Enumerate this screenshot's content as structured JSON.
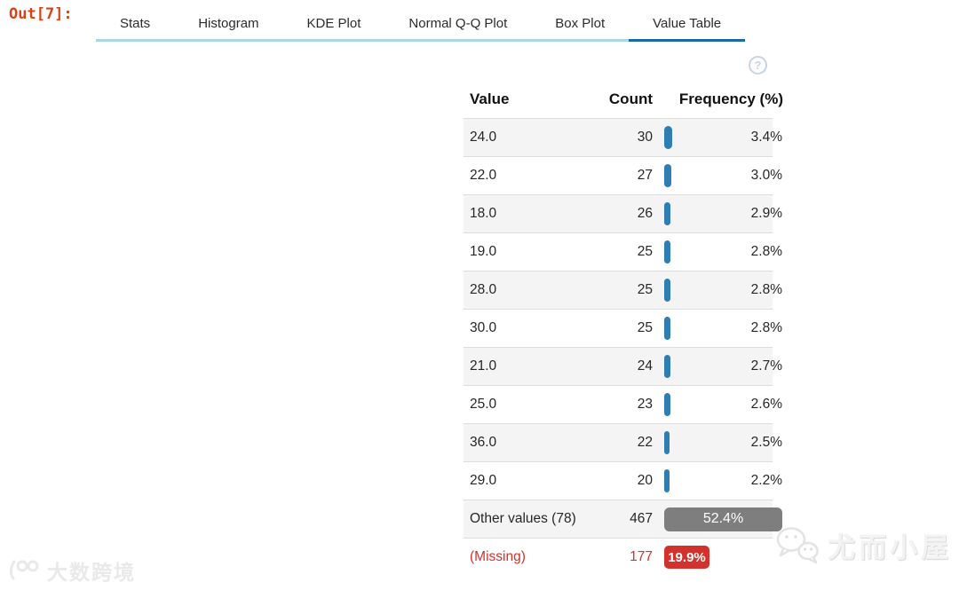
{
  "prompt": {
    "label": "Out[7]:"
  },
  "tabs": {
    "items": [
      {
        "label": "Stats",
        "active": false
      },
      {
        "label": "Histogram",
        "active": false
      },
      {
        "label": "KDE Plot",
        "active": false
      },
      {
        "label": "Normal Q-Q Plot",
        "active": false
      },
      {
        "label": "Box Plot",
        "active": false
      },
      {
        "label": "Value Table",
        "active": true
      }
    ]
  },
  "help": {
    "glyph": "?"
  },
  "table": {
    "columns": [
      "Value",
      "Count",
      "Frequency (%)"
    ],
    "rows": [
      {
        "value": "24.0",
        "count": "30",
        "pct": 3.4,
        "pct_label": "3.4%",
        "type": "normal"
      },
      {
        "value": "22.0",
        "count": "27",
        "pct": 3.0,
        "pct_label": "3.0%",
        "type": "normal"
      },
      {
        "value": "18.0",
        "count": "26",
        "pct": 2.9,
        "pct_label": "2.9%",
        "type": "normal"
      },
      {
        "value": "19.0",
        "count": "25",
        "pct": 2.8,
        "pct_label": "2.8%",
        "type": "normal"
      },
      {
        "value": "28.0",
        "count": "25",
        "pct": 2.8,
        "pct_label": "2.8%",
        "type": "normal"
      },
      {
        "value": "30.0",
        "count": "25",
        "pct": 2.8,
        "pct_label": "2.8%",
        "type": "normal"
      },
      {
        "value": "21.0",
        "count": "24",
        "pct": 2.7,
        "pct_label": "2.7%",
        "type": "normal"
      },
      {
        "value": "25.0",
        "count": "23",
        "pct": 2.6,
        "pct_label": "2.6%",
        "type": "normal"
      },
      {
        "value": "36.0",
        "count": "22",
        "pct": 2.5,
        "pct_label": "2.5%",
        "type": "normal"
      },
      {
        "value": "29.0",
        "count": "20",
        "pct": 2.2,
        "pct_label": "2.2%",
        "type": "normal"
      },
      {
        "value": "Other values (78)",
        "count": "467",
        "pct": 52.4,
        "pct_label": "52.4%",
        "type": "other"
      },
      {
        "value": "(Missing)",
        "count": "177",
        "pct": 19.9,
        "pct_label": "19.9%",
        "type": "missing"
      }
    ]
  },
  "watermarks": {
    "bottom_left": "大数跨境",
    "bottom_right": "尤而小屋"
  },
  "colors": {
    "prompt_red": "#d84315",
    "tab_underline": "#a9d8e2",
    "active_underline": "#1b6ba3",
    "bar_blue": "#2e7eb3",
    "bar_gray": "#7e7e7e",
    "bar_red": "#d2312d",
    "row_alt_bg": "#f4f4f4"
  }
}
